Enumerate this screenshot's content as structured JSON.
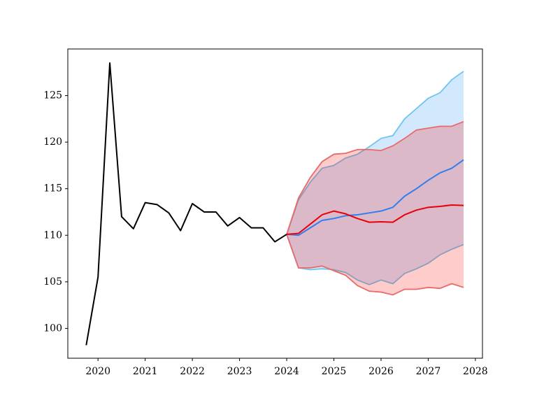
{
  "chart_data": {
    "type": "line",
    "xlim": [
      2019.36,
      2028.15
    ],
    "ylim": [
      96.8,
      130
    ],
    "xticks": [
      2020,
      2021,
      2022,
      2023,
      2024,
      2025,
      2026,
      2027,
      2028
    ],
    "yticks": [
      100,
      105,
      110,
      115,
      120,
      125
    ],
    "bands": [
      {
        "fill": "#1f8ef1",
        "fill_opacity": 0.2,
        "edge": "#6ec6ee",
        "x": [
          2024,
          2024.25,
          2024.5,
          2024.75,
          2025,
          2025.25,
          2025.5,
          2025.75,
          2026,
          2026.25,
          2026.5,
          2026.75,
          2027,
          2027.25,
          2027.5,
          2027.75
        ],
        "upper": [
          110.1,
          113.8,
          115.7,
          117.2,
          117.5,
          118.3,
          118.7,
          119.5,
          120.4,
          120.7,
          122.5,
          123.6,
          124.7,
          125.3,
          126.7,
          127.6
        ],
        "lower": [
          110.1,
          106.5,
          106.3,
          106.4,
          106.3,
          106.0,
          105.2,
          104.7,
          105.2,
          104.8,
          105.9,
          106.4,
          107.0,
          107.9,
          108.5,
          109.0
        ]
      },
      {
        "fill": "#ff0000",
        "fill_opacity": 0.2,
        "edge": "#e86a6a",
        "x": [
          2024,
          2024.25,
          2024.5,
          2024.75,
          2025,
          2025.25,
          2025.5,
          2025.75,
          2026,
          2026.25,
          2026.5,
          2026.75,
          2027,
          2027.25,
          2027.5,
          2027.75
        ],
        "upper": [
          110.1,
          114.0,
          116.2,
          117.9,
          118.7,
          118.8,
          119.2,
          119.2,
          119.1,
          119.6,
          120.4,
          121.3,
          121.5,
          121.7,
          121.7,
          122.2
        ],
        "lower": [
          110.1,
          106.5,
          106.5,
          106.7,
          106.2,
          105.7,
          104.6,
          104.0,
          103.9,
          103.6,
          104.2,
          104.2,
          104.4,
          104.3,
          104.8,
          104.4
        ]
      }
    ],
    "series": [
      {
        "color": "#000000",
        "x": [
          2019.75,
          2020,
          2020.25,
          2020.5,
          2020.75,
          2021,
          2021.25,
          2021.5,
          2021.75,
          2022,
          2022.25,
          2022.5,
          2022.75,
          2023,
          2023.25,
          2023.5,
          2023.75,
          2024
        ],
        "values": [
          98.2,
          105.5,
          128.5,
          112.0,
          110.7,
          113.5,
          113.3,
          112.4,
          110.5,
          113.4,
          112.5,
          112.5,
          111.0,
          111.9,
          110.8,
          110.8,
          109.3,
          110.1
        ]
      },
      {
        "color": "#2f7ff0",
        "x": [
          2024,
          2024.25,
          2024.5,
          2024.75,
          2025,
          2025.25,
          2025.5,
          2025.75,
          2026,
          2026.25,
          2026.5,
          2026.75,
          2027,
          2027.25,
          2027.5,
          2027.75
        ],
        "values": [
          110.1,
          110.0,
          110.8,
          111.6,
          111.8,
          112.1,
          112.2,
          112.4,
          112.6,
          113.0,
          114.2,
          115.0,
          115.9,
          116.7,
          117.2,
          118.1
        ]
      },
      {
        "color": "#e8000b",
        "x": [
          2024,
          2024.25,
          2024.5,
          2024.75,
          2025,
          2025.25,
          2025.5,
          2025.75,
          2026,
          2026.25,
          2026.5,
          2026.75,
          2027,
          2027.25,
          2027.5,
          2027.75
        ],
        "values": [
          110.1,
          110.2,
          111.2,
          112.2,
          112.6,
          112.3,
          111.8,
          111.4,
          111.45,
          111.4,
          112.2,
          112.7,
          113.0,
          113.1,
          113.25,
          113.2
        ]
      }
    ]
  }
}
